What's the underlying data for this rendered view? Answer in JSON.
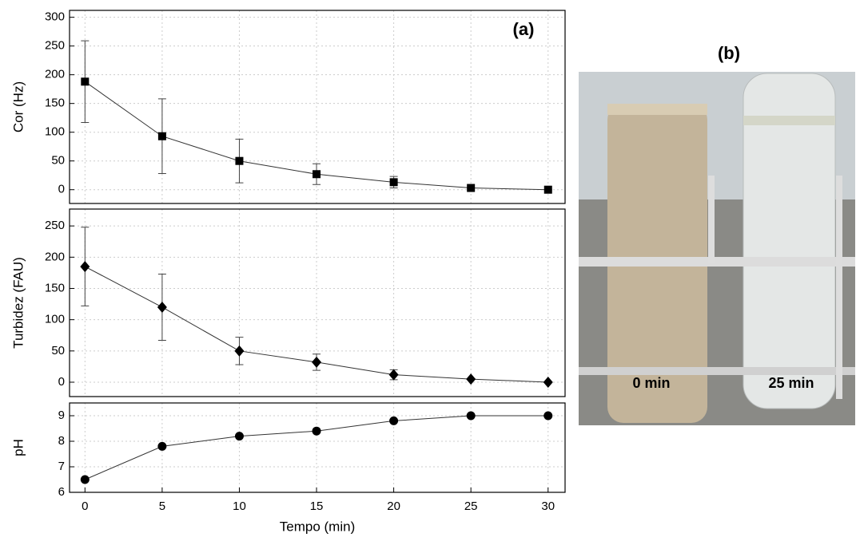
{
  "chart_data": [
    {
      "type": "line",
      "ylabel": "Cor (Hz)",
      "annotation": "(a)",
      "marker": "square",
      "color": "#000000",
      "x": [
        0,
        5,
        10,
        15,
        20,
        25,
        30
      ],
      "values": [
        188,
        93,
        50,
        27,
        13,
        3,
        0
      ],
      "errors": [
        71,
        65,
        38,
        18,
        10,
        0,
        0
      ],
      "xlim": [
        -1,
        31.1
      ],
      "ylim": [
        -24,
        312
      ],
      "yticks": [
        0,
        50,
        100,
        150,
        200,
        250,
        300
      ],
      "grid": true
    },
    {
      "type": "line",
      "ylabel": "Turbidez (FAU)",
      "marker": "diamond",
      "color": "#000000",
      "x": [
        0,
        5,
        10,
        15,
        20,
        25,
        30
      ],
      "values": [
        185,
        120,
        50,
        32,
        12,
        5,
        0
      ],
      "errors": [
        63,
        53,
        22,
        13,
        8,
        0,
        0
      ],
      "xlim": [
        -1,
        31.1
      ],
      "ylim": [
        -23,
        277
      ],
      "yticks": [
        0,
        50,
        100,
        150,
        200,
        250
      ],
      "grid": true
    },
    {
      "type": "line",
      "ylabel": "pH",
      "xlabel": "Tempo (min)",
      "marker": "circle",
      "color": "#000000",
      "x": [
        0,
        5,
        10,
        15,
        20,
        25,
        30
      ],
      "values": [
        6.5,
        7.8,
        8.2,
        8.4,
        8.8,
        9.0,
        9.0
      ],
      "xlim": [
        -1,
        31.1
      ],
      "xticks": [
        0,
        5,
        10,
        15,
        20,
        25,
        30
      ],
      "ylim": [
        6,
        9.5
      ],
      "yticks": [
        6,
        7,
        8,
        9
      ],
      "grid": true
    }
  ],
  "photo": {
    "label": "(b)",
    "captions": [
      "0 min",
      "25 min"
    ]
  }
}
